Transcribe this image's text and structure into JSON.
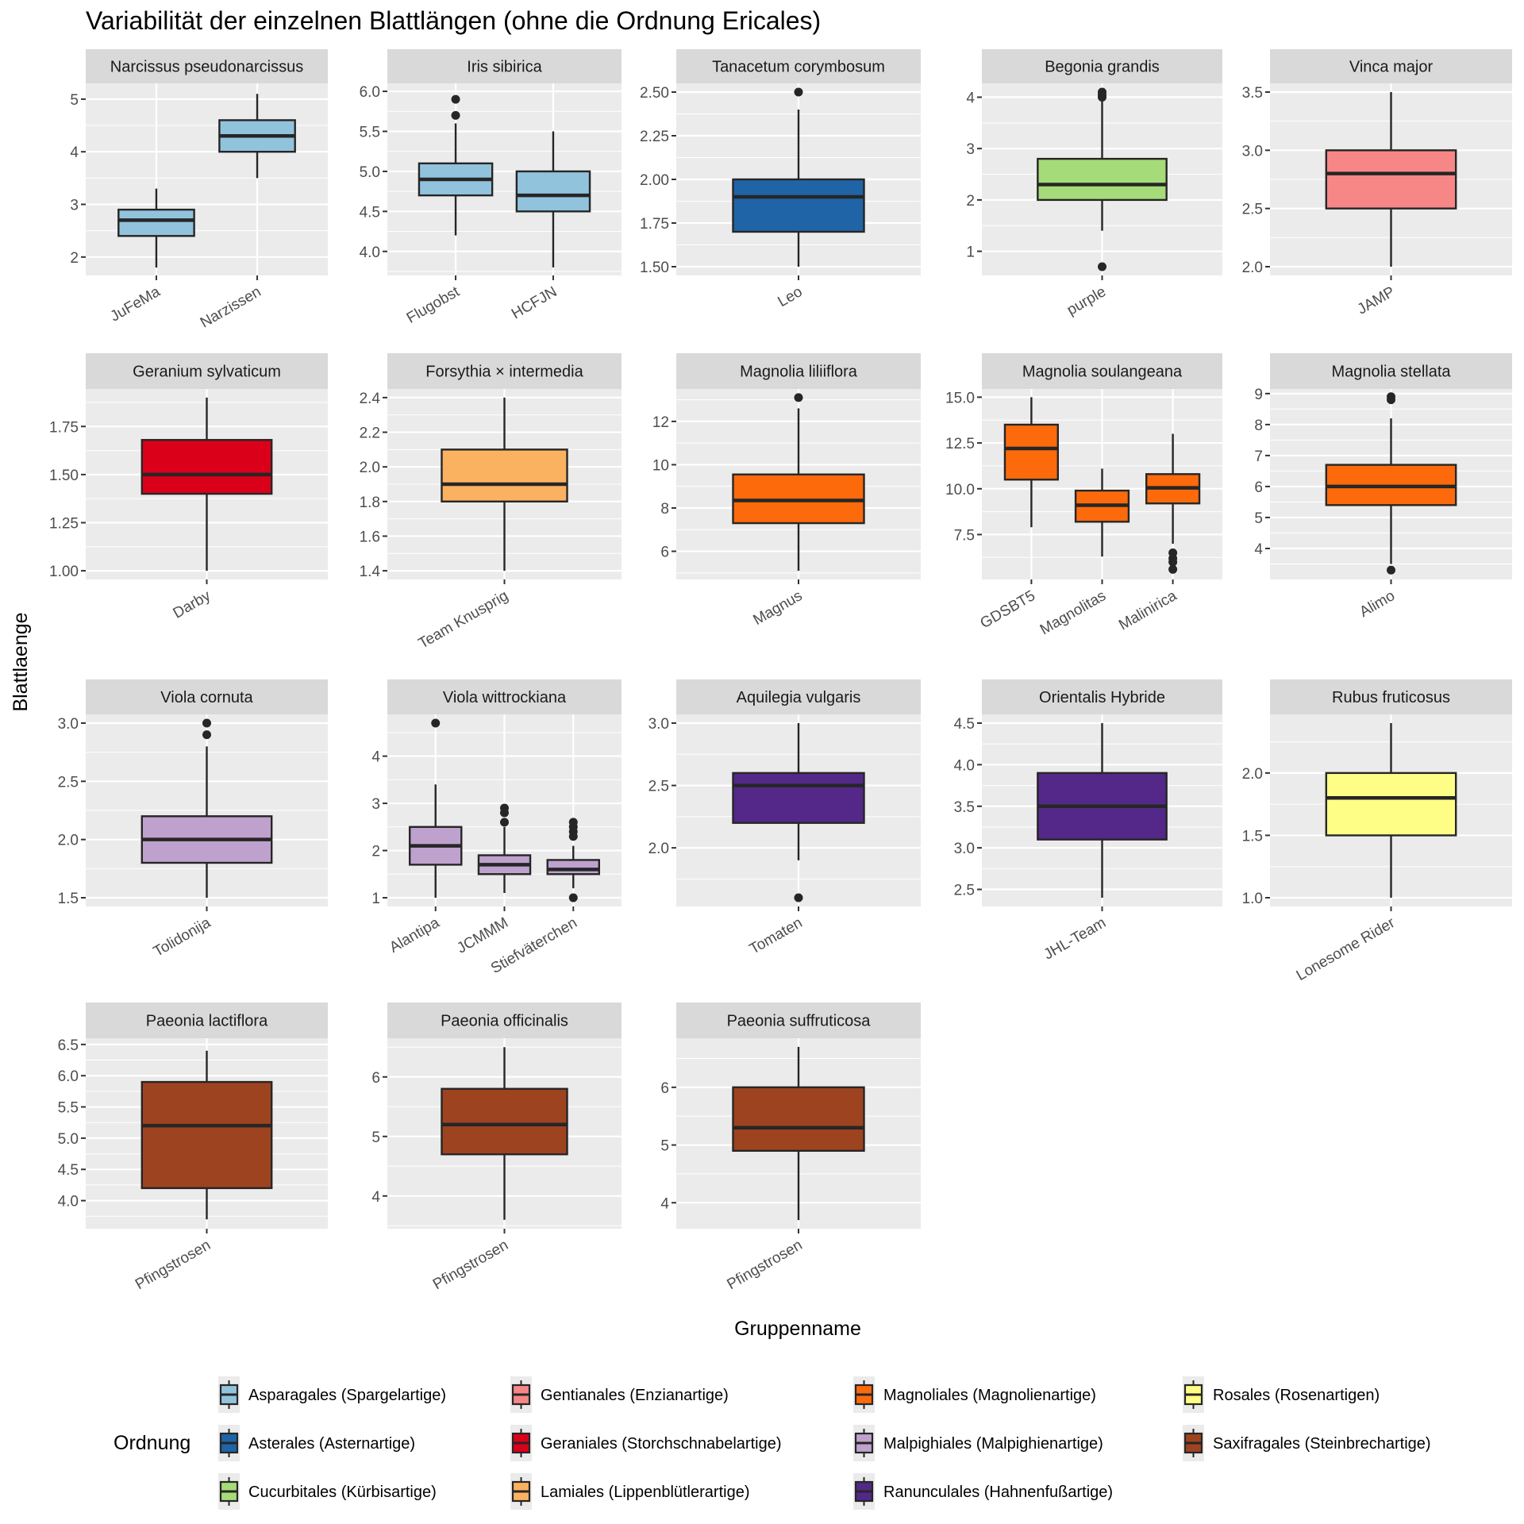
{
  "chart_data": {
    "type": "boxplot",
    "title": "Variabilität der einzelnen Blattlängen (ohne die Ordnung Ericales)",
    "xlabel": "Gruppenname",
    "ylabel": "Blattlaenge",
    "grid": true,
    "legend": {
      "title": "Ordnung",
      "position": "bottom",
      "entries": [
        {
          "label": "Asparagales (Spargelartige)",
          "color": "#92C3DD"
        },
        {
          "label": "Asterales (Asternartige)",
          "color": "#1F64A6"
        },
        {
          "label": "Cucurbitales (Kürbisartige)",
          "color": "#A6DB79"
        },
        {
          "label": "Gentianales (Enzianartige)",
          "color": "#F78687"
        },
        {
          "label": "Geraniales (Storchschnabelartige)",
          "color": "#DA0019"
        },
        {
          "label": "Lamiales (Lippenblütlerartige)",
          "color": "#FAB260"
        },
        {
          "label": "Magnoliales (Magnolienartige)",
          "color": "#FC6A0B"
        },
        {
          "label": "Malpighiales (Malpighienartige)",
          "color": "#BEA2CD"
        },
        {
          "label": "Ranunculales (Hahnenfußartige)",
          "color": "#532888"
        },
        {
          "label": "Rosales (Rosenartigen)",
          "color": "#FEFE86"
        },
        {
          "label": "Saxifragales (Steinbrechartige)",
          "color": "#9E4320"
        }
      ]
    },
    "panels": [
      {
        "title": "Narcissus pseudonarcissus",
        "order": "Asparagales (Spargelartige)",
        "color": "#92C3DD",
        "ylim": [
          1.65,
          5.3
        ],
        "yticks": [
          2,
          3,
          4,
          5
        ],
        "ytick_labels": [
          "2",
          "3",
          "4",
          "5"
        ],
        "groups": [
          {
            "name": "JuFeMa",
            "whisker_low": 1.8,
            "q1": 2.4,
            "median": 2.7,
            "q3": 2.9,
            "whisker_high": 3.3,
            "outliers": []
          },
          {
            "name": "Narzissen",
            "whisker_low": 3.5,
            "q1": 4.0,
            "median": 4.3,
            "q3": 4.6,
            "whisker_high": 5.1,
            "outliers": []
          }
        ]
      },
      {
        "title": "Iris sibirica",
        "order": "Asparagales (Spargelartige)",
        "color": "#92C3DD",
        "ylim": [
          3.7,
          6.1
        ],
        "yticks": [
          4.0,
          4.5,
          5.0,
          5.5,
          6.0
        ],
        "ytick_labels": [
          "4.0",
          "4.5",
          "5.0",
          "5.5",
          "6.0"
        ],
        "groups": [
          {
            "name": "Flugobst",
            "whisker_low": 4.2,
            "q1": 4.7,
            "median": 4.9,
            "q3": 5.1,
            "whisker_high": 5.6,
            "outliers": [
              5.7,
              5.9
            ]
          },
          {
            "name": "HCFJN",
            "whisker_low": 3.8,
            "q1": 4.5,
            "median": 4.7,
            "q3": 5.0,
            "whisker_high": 5.5,
            "outliers": []
          }
        ]
      },
      {
        "title": "Tanacetum corymbosum",
        "order": "Asterales (Asternartige)",
        "color": "#1F64A6",
        "ylim": [
          1.45,
          2.55
        ],
        "yticks": [
          1.5,
          1.75,
          2.0,
          2.25,
          2.5
        ],
        "ytick_labels": [
          "1.50",
          "1.75",
          "2.00",
          "2.25",
          "2.50"
        ],
        "groups": [
          {
            "name": "Leo",
            "whisker_low": 1.5,
            "q1": 1.7,
            "median": 1.9,
            "q3": 2.0,
            "whisker_high": 2.4,
            "outliers": [
              2.5
            ]
          }
        ]
      },
      {
        "title": "Begonia grandis",
        "order": "Cucurbitales (Kürbisartige)",
        "color": "#A6DB79",
        "ylim": [
          0.53,
          4.27
        ],
        "yticks": [
          1,
          2,
          3,
          4
        ],
        "ytick_labels": [
          "1",
          "2",
          "3",
          "4"
        ],
        "groups": [
          {
            "name": "purple",
            "whisker_low": 1.4,
            "q1": 2.0,
            "median": 2.3,
            "q3": 2.8,
            "whisker_high": 3.95,
            "outliers": [
              0.7,
              4.0,
              4.05,
              4.1
            ]
          }
        ]
      },
      {
        "title": "Vinca major",
        "order": "Gentianales (Enzianartige)",
        "color": "#F78687",
        "ylim": [
          1.925,
          3.575
        ],
        "yticks": [
          2.0,
          2.5,
          3.0,
          3.5
        ],
        "ytick_labels": [
          "2.0",
          "2.5",
          "3.0",
          "3.5"
        ],
        "groups": [
          {
            "name": "JAMP",
            "whisker_low": 2.0,
            "q1": 2.5,
            "median": 2.8,
            "q3": 3.0,
            "whisker_high": 3.5,
            "outliers": []
          }
        ]
      },
      {
        "title": "Geranium sylvaticum",
        "order": "Geraniales (Storchschnabelartige)",
        "color": "#DA0019",
        "ylim": [
          0.955,
          1.945
        ],
        "yticks": [
          1.0,
          1.25,
          1.5,
          1.75
        ],
        "ytick_labels": [
          "1.00",
          "1.25",
          "1.50",
          "1.75"
        ],
        "groups": [
          {
            "name": "Darby",
            "whisker_low": 1.0,
            "q1": 1.4,
            "median": 1.5,
            "q3": 1.68,
            "whisker_high": 1.9,
            "outliers": []
          }
        ]
      },
      {
        "title": "Forsythia × intermedia",
        "order": "Lamiales (Lippenblütlerartige)",
        "color": "#FAB260",
        "ylim": [
          1.35,
          2.45
        ],
        "yticks": [
          1.4,
          1.6,
          1.8,
          2.0,
          2.2,
          2.4
        ],
        "ytick_labels": [
          "1.4",
          "1.6",
          "1.8",
          "2.0",
          "2.2",
          "2.4"
        ],
        "groups": [
          {
            "name": "Team Knusprig",
            "whisker_low": 1.4,
            "q1": 1.8,
            "median": 1.9,
            "q3": 2.1,
            "whisker_high": 2.4,
            "outliers": []
          }
        ]
      },
      {
        "title": "Magnolia liliiflora",
        "order": "Magnoliales (Magnolienartige)",
        "color": "#FC6A0B",
        "ylim": [
          4.7,
          13.5
        ],
        "yticks": [
          6,
          8,
          10,
          12
        ],
        "ytick_labels": [
          "6",
          "8",
          "10",
          "12"
        ],
        "groups": [
          {
            "name": "Magnus",
            "whisker_low": 5.1,
            "q1": 7.3,
            "median": 8.35,
            "q3": 9.55,
            "whisker_high": 12.6,
            "outliers": [
              13.1
            ]
          }
        ]
      },
      {
        "title": "Magnolia soulangeana",
        "order": "Magnoliales (Magnolienartige)",
        "color": "#FC6A0B",
        "ylim": [
          5.05,
          15.45
        ],
        "yticks": [
          7.5,
          10.0,
          12.5,
          15.0
        ],
        "ytick_labels": [
          "7.5",
          "10.0",
          "12.5",
          "15.0"
        ],
        "groups": [
          {
            "name": "GDSBT5",
            "whisker_low": 7.9,
            "q1": 10.5,
            "median": 12.2,
            "q3": 13.5,
            "whisker_high": 15.0,
            "outliers": []
          },
          {
            "name": "Magnolitas",
            "whisker_low": 6.3,
            "q1": 8.2,
            "median": 9.1,
            "q3": 9.9,
            "whisker_high": 11.1,
            "outliers": []
          },
          {
            "name": "Malinirica",
            "whisker_low": 7.0,
            "q1": 9.2,
            "median": 10.05,
            "q3": 10.8,
            "whisker_high": 13.0,
            "outliers": [
              5.6,
              6.0,
              6.2,
              6.5
            ]
          }
        ]
      },
      {
        "title": "Magnolia stellata",
        "order": "Magnoliales (Magnolienartige)",
        "color": "#FC6A0B",
        "ylim": [
          3.0,
          9.15
        ],
        "yticks": [
          4,
          5,
          6,
          7,
          8,
          9
        ],
        "ytick_labels": [
          "4",
          "5",
          "6",
          "7",
          "8",
          "9"
        ],
        "groups": [
          {
            "name": "Alimo",
            "whisker_low": 3.5,
            "q1": 5.4,
            "median": 6.0,
            "q3": 6.7,
            "whisker_high": 8.2,
            "outliers": [
              3.3,
              8.8,
              8.9
            ]
          }
        ]
      },
      {
        "title": "Viola cornuta",
        "order": "Malpighiales (Malpighienartige)",
        "color": "#BEA2CD",
        "ylim": [
          1.425,
          3.075
        ],
        "yticks": [
          1.5,
          2.0,
          2.5,
          3.0
        ],
        "ytick_labels": [
          "1.5",
          "2.0",
          "2.5",
          "3.0"
        ],
        "groups": [
          {
            "name": "Tolidonija",
            "whisker_low": 1.5,
            "q1": 1.8,
            "median": 2.0,
            "q3": 2.2,
            "whisker_high": 2.8,
            "outliers": [
              2.9,
              3.0
            ]
          }
        ]
      },
      {
        "title": "Viola wittrockiana",
        "order": "Malpighiales (Malpighienartige)",
        "color": "#BEA2CD",
        "ylim": [
          0.815,
          4.885
        ],
        "yticks": [
          1,
          2,
          3,
          4
        ],
        "ytick_labels": [
          "1",
          "2",
          "3",
          "4"
        ],
        "groups": [
          {
            "name": "Alantipa",
            "whisker_low": 1.0,
            "q1": 1.7,
            "median": 2.1,
            "q3": 2.5,
            "whisker_high": 3.4,
            "outliers": [
              4.7
            ]
          },
          {
            "name": "JCMMM",
            "whisker_low": 1.1,
            "q1": 1.5,
            "median": 1.7,
            "q3": 1.9,
            "whisker_high": 2.5,
            "outliers": [
              2.6,
              2.8,
              2.9
            ]
          },
          {
            "name": "Stiefväterchen",
            "whisker_low": 1.2,
            "q1": 1.5,
            "median": 1.6,
            "q3": 1.8,
            "whisker_high": 2.1,
            "outliers": [
              1.0,
              2.3,
              2.4,
              2.5,
              2.6
            ]
          }
        ]
      },
      {
        "title": "Aquilegia vulgaris",
        "order": "Ranunculales (Hahnenfußartige)",
        "color": "#532888",
        "ylim": [
          1.53,
          3.07
        ],
        "yticks": [
          2.0,
          2.5,
          3.0
        ],
        "ytick_labels": [
          "2.0",
          "2.5",
          "3.0"
        ],
        "groups": [
          {
            "name": "Tomaten",
            "whisker_low": 1.9,
            "q1": 2.2,
            "median": 2.5,
            "q3": 2.6,
            "whisker_high": 3.0,
            "outliers": [
              1.6
            ]
          }
        ]
      },
      {
        "title": "Orientalis Hybride",
        "order": "Ranunculales (Hahnenfußartige)",
        "color": "#532888",
        "ylim": [
          2.295,
          4.605
        ],
        "yticks": [
          2.5,
          3.0,
          3.5,
          4.0,
          4.5
        ],
        "ytick_labels": [
          "2.5",
          "3.0",
          "3.5",
          "4.0",
          "4.5"
        ],
        "groups": [
          {
            "name": "JHL-Team",
            "whisker_low": 2.4,
            "q1": 3.1,
            "median": 3.5,
            "q3": 3.9,
            "whisker_high": 4.5,
            "outliers": []
          }
        ]
      },
      {
        "title": "Rubus fruticosus",
        "order": "Rosales (Rosenartigen)",
        "color": "#FEFE86",
        "ylim": [
          0.93,
          2.47
        ],
        "yticks": [
          1.0,
          1.5,
          2.0
        ],
        "ytick_labels": [
          "1.0",
          "1.5",
          "2.0"
        ],
        "groups": [
          {
            "name": "Lonesome Rider",
            "whisker_low": 1.0,
            "q1": 1.5,
            "median": 1.8,
            "q3": 2.0,
            "whisker_high": 2.4,
            "outliers": []
          }
        ]
      },
      {
        "title": "Paeonia lactiflora",
        "order": "Saxifragales (Steinbrechartige)",
        "color": "#9E4320",
        "ylim": [
          3.55,
          6.6
        ],
        "yticks": [
          4.0,
          4.5,
          5.0,
          5.5,
          6.0,
          6.5
        ],
        "ytick_labels": [
          "4.0",
          "4.5",
          "5.0",
          "5.5",
          "6.0",
          "6.5"
        ],
        "groups": [
          {
            "name": "Pfingstrosen",
            "whisker_low": 3.7,
            "q1": 4.2,
            "median": 5.2,
            "q3": 5.9,
            "whisker_high": 6.4,
            "outliers": []
          }
        ]
      },
      {
        "title": "Paeonia officinalis",
        "order": "Saxifragales (Steinbrechartige)",
        "color": "#9E4320",
        "ylim": [
          3.45,
          6.65
        ],
        "yticks": [
          4,
          5,
          6
        ],
        "ytick_labels": [
          "4",
          "5",
          "6"
        ],
        "groups": [
          {
            "name": "Pfingstrosen",
            "whisker_low": 3.6,
            "q1": 4.7,
            "median": 5.2,
            "q3": 5.8,
            "whisker_high": 6.5,
            "outliers": []
          }
        ]
      },
      {
        "title": "Paeonia suffruticosa",
        "order": "Saxifragales (Steinbrechartige)",
        "color": "#9E4320",
        "ylim": [
          3.55,
          6.85
        ],
        "yticks": [
          4,
          5,
          6
        ],
        "ytick_labels": [
          "4",
          "5",
          "6"
        ],
        "groups": [
          {
            "name": "Pfingstrosen",
            "whisker_low": 3.7,
            "q1": 4.9,
            "median": 5.3,
            "q3": 6.0,
            "whisker_high": 6.7,
            "outliers": []
          }
        ]
      }
    ]
  }
}
